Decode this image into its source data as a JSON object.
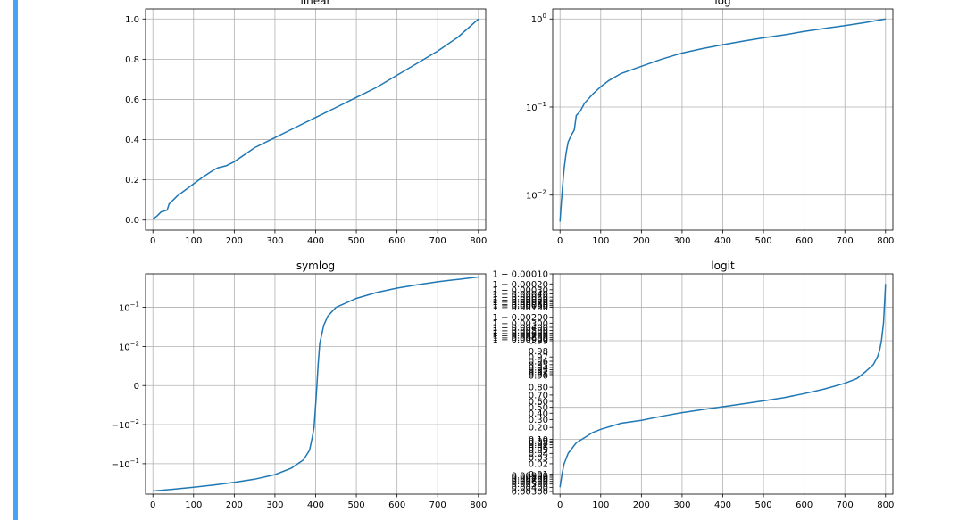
{
  "figure": {
    "accent_color": "#42a5f5",
    "line_color": "#1f77b4"
  },
  "chart_data": [
    {
      "type": "line",
      "title": "linear",
      "yscale": "linear",
      "xlim": [
        -18,
        818
      ],
      "ylim": [
        -0.05,
        1.05
      ],
      "grid": true,
      "xticks": [
        0,
        100,
        200,
        300,
        400,
        500,
        600,
        700,
        800
      ],
      "xticklabels": [
        "0",
        "100",
        "200",
        "300",
        "400",
        "500",
        "600",
        "700",
        "800"
      ],
      "yticks": [
        0.0,
        0.2,
        0.4,
        0.6,
        0.8,
        1.0
      ],
      "yticklabels": [
        "0.0",
        "0.2",
        "0.4",
        "0.6",
        "0.8",
        "1.0"
      ],
      "series": [
        {
          "x": [
            0,
            10,
            20,
            35,
            40,
            50,
            60,
            80,
            100,
            120,
            150,
            160,
            180,
            200,
            250,
            300,
            350,
            400,
            450,
            500,
            550,
            600,
            650,
            700,
            750,
            800
          ],
          "y": [
            0.005,
            0.02,
            0.04,
            0.05,
            0.08,
            0.1,
            0.12,
            0.15,
            0.18,
            0.21,
            0.25,
            0.26,
            0.27,
            0.29,
            0.36,
            0.41,
            0.46,
            0.51,
            0.56,
            0.61,
            0.66,
            0.72,
            0.78,
            0.84,
            0.91,
            1.0
          ]
        }
      ]
    },
    {
      "type": "line",
      "title": "log",
      "yscale": "log",
      "xlim": [
        -18,
        818
      ],
      "ylim": [
        0.004,
        1.3
      ],
      "grid": true,
      "xticks": [
        0,
        100,
        200,
        300,
        400,
        500,
        600,
        700,
        800
      ],
      "xticklabels": [
        "0",
        "100",
        "200",
        "300",
        "400",
        "500",
        "600",
        "700",
        "800"
      ],
      "yticks": [
        0.01,
        0.1,
        1.0
      ],
      "yticklabels": [
        {
          "base": "10",
          "exp": "−2"
        },
        {
          "base": "10",
          "exp": "−1"
        },
        {
          "base": "10",
          "exp": "0"
        }
      ],
      "series": [
        {
          "x": [
            0,
            3,
            6,
            10,
            15,
            20,
            25,
            30,
            35,
            40,
            50,
            60,
            80,
            100,
            120,
            150,
            200,
            250,
            300,
            350,
            400,
            450,
            500,
            550,
            600,
            650,
            700,
            750,
            800
          ],
          "y": [
            0.005,
            0.008,
            0.012,
            0.02,
            0.03,
            0.04,
            0.045,
            0.05,
            0.055,
            0.08,
            0.09,
            0.11,
            0.14,
            0.17,
            0.2,
            0.24,
            0.29,
            0.35,
            0.41,
            0.46,
            0.51,
            0.56,
            0.61,
            0.66,
            0.72,
            0.78,
            0.84,
            0.91,
            1.0
          ]
        }
      ]
    },
    {
      "type": "line",
      "title": "symlog",
      "yscale": "symlog",
      "xlim": [
        -18,
        818
      ],
      "grid": true,
      "xticks": [
        0,
        100,
        200,
        300,
        400,
        500,
        600,
        700,
        800
      ],
      "xticklabels": [
        "0",
        "100",
        "200",
        "300",
        "400",
        "500",
        "600",
        "700",
        "800"
      ],
      "yticks": [
        -0.1,
        -0.01,
        0,
        0.01,
        0.1
      ],
      "yticklabels": [
        {
          "base": "−10",
          "exp": "−1"
        },
        {
          "base": "−10",
          "exp": "−2"
        },
        {
          "base": "0",
          "exp": ""
        },
        {
          "base": "10",
          "exp": "−2"
        },
        {
          "base": "10",
          "exp": "−1"
        }
      ],
      "series": [
        {
          "x": [
            0,
            50,
            100,
            150,
            200,
            250,
            300,
            340,
            370,
            385,
            392,
            396,
            400,
            403,
            406,
            410,
            415,
            420,
            430,
            450,
            500,
            550,
            600,
            650,
            700,
            750,
            800
          ],
          "y": [
            -0.5,
            -0.45,
            -0.4,
            -0.35,
            -0.3,
            -0.25,
            -0.19,
            -0.13,
            -0.08,
            -0.045,
            -0.02,
            -0.012,
            -0.005,
            0.0,
            0.005,
            0.012,
            0.02,
            0.035,
            0.06,
            0.1,
            0.17,
            0.24,
            0.31,
            0.38,
            0.45,
            0.52,
            0.6
          ]
        }
      ]
    },
    {
      "type": "line",
      "title": "logit",
      "yscale": "logit",
      "xlim": [
        -18,
        818
      ],
      "grid": true,
      "xticks": [
        0,
        100,
        200,
        300,
        400,
        500,
        600,
        700,
        800
      ],
      "xticklabels": [
        "0",
        "100",
        "200",
        "300",
        "400",
        "500",
        "600",
        "700",
        "800"
      ],
      "yticks_top": [
        "1 − 0.00010",
        "1 − 0.00020",
        "1 − 0.00030",
        "1 − 0.00040",
        "1 − 0.00050",
        "1 − 0.00060",
        "1 − 0.00070",
        "1 − 0.00080",
        "1 − 0.00090",
        "1 − 0.00100",
        "1 − 0.00200",
        "1 − 0.00300",
        "1 − 0.00400",
        "1 − 0.00500",
        "1 − 0.00600",
        "1 − 0.00700",
        "1 − 0.00800",
        "1 − 0.00900",
        "0.99"
      ],
      "yticks_mid": [
        "0.98",
        "0.97",
        "0.96",
        "0.95",
        "0.94",
        "0.93",
        "0.92",
        "0.91",
        "0.90",
        "0.80",
        "0.70",
        "0.60",
        "0.50",
        "0.40",
        "0.30",
        "0.20",
        "0.10",
        "0.09",
        "0.08",
        "0.07",
        "0.06",
        "0.05",
        "0.04",
        "0.03",
        "0.02"
      ],
      "yticks_bottom": [
        "0.01",
        "0.00900",
        "0.00800",
        "0.00700",
        "0.00600",
        "0.00500",
        "0.00400",
        "0.00300"
      ],
      "series": [
        {
          "x": [
            0,
            5,
            10,
            20,
            40,
            60,
            80,
            100,
            150,
            200,
            250,
            300,
            350,
            400,
            450,
            500,
            550,
            600,
            650,
            700,
            730,
            750,
            770,
            780,
            785,
            790,
            795,
            800
          ],
          "y": [
            0.004,
            0.01,
            0.02,
            0.04,
            0.08,
            0.11,
            0.15,
            0.18,
            0.25,
            0.29,
            0.35,
            0.41,
            0.46,
            0.51,
            0.56,
            0.61,
            0.66,
            0.72,
            0.78,
            0.84,
            0.88,
            0.92,
            0.95,
            0.97,
            0.98,
            0.99,
            0.997,
            0.9998
          ]
        }
      ]
    }
  ]
}
